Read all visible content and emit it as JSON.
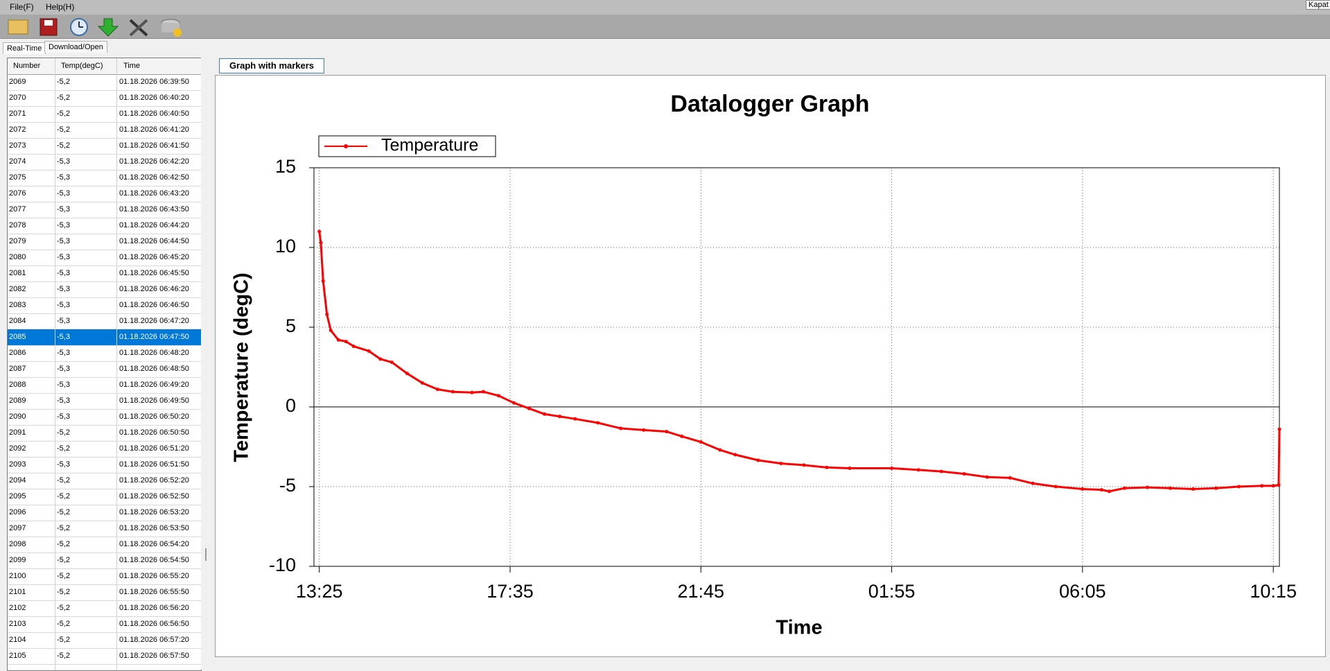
{
  "menu": [
    "File(F)",
    "Help(H)"
  ],
  "window_button": "Kapat",
  "tabs": [
    "Real-Time",
    "Download/Open"
  ],
  "table": {
    "columns": [
      "Number",
      "Temp(degC)",
      "Time"
    ],
    "selected_row": 16,
    "rows": [
      [
        "2069",
        "-5,2",
        "01.18.2026 06:39:50"
      ],
      [
        "2070",
        "-5,2",
        "01.18.2026 06:40:20"
      ],
      [
        "2071",
        "-5,2",
        "01.18.2026 06:40:50"
      ],
      [
        "2072",
        "-5,2",
        "01.18.2026 06:41:20"
      ],
      [
        "2073",
        "-5,2",
        "01.18.2026 06:41:50"
      ],
      [
        "2074",
        "-5,3",
        "01.18.2026 06:42:20"
      ],
      [
        "2075",
        "-5,3",
        "01.18.2026 06:42:50"
      ],
      [
        "2076",
        "-5,3",
        "01.18.2026 06:43:20"
      ],
      [
        "2077",
        "-5,3",
        "01.18.2026 06:43:50"
      ],
      [
        "2078",
        "-5,3",
        "01.18.2026 06:44:20"
      ],
      [
        "2079",
        "-5,3",
        "01.18.2026 06:44:50"
      ],
      [
        "2080",
        "-5,3",
        "01.18.2026 06:45:20"
      ],
      [
        "2081",
        "-5,3",
        "01.18.2026 06:45:50"
      ],
      [
        "2082",
        "-5,3",
        "01.18.2026 06:46:20"
      ],
      [
        "2083",
        "-5,3",
        "01.18.2026 06:46:50"
      ],
      [
        "2084",
        "-5,3",
        "01.18.2026 06:47:20"
      ],
      [
        "2085",
        "-5,3",
        "01.18.2026 06:47:50"
      ],
      [
        "2086",
        "-5,3",
        "01.18.2026 06:48:20"
      ],
      [
        "2087",
        "-5,3",
        "01.18.2026 06:48:50"
      ],
      [
        "2088",
        "-5,3",
        "01.18.2026 06:49:20"
      ],
      [
        "2089",
        "-5,3",
        "01.18.2026 06:49:50"
      ],
      [
        "2090",
        "-5,3",
        "01.18.2026 06:50:20"
      ],
      [
        "2091",
        "-5,2",
        "01.18.2026 06:50:50"
      ],
      [
        "2092",
        "-5,2",
        "01.18.2026 06:51:20"
      ],
      [
        "2093",
        "-5,3",
        "01.18.2026 06:51:50"
      ],
      [
        "2094",
        "-5,2",
        "01.18.2026 06:52:20"
      ],
      [
        "2095",
        "-5,2",
        "01.18.2026 06:52:50"
      ],
      [
        "2096",
        "-5,2",
        "01.18.2026 06:53:20"
      ],
      [
        "2097",
        "-5,2",
        "01.18.2026 06:53:50"
      ],
      [
        "2098",
        "-5,2",
        "01.18.2026 06:54:20"
      ],
      [
        "2099",
        "-5,2",
        "01.18.2026 06:54:50"
      ],
      [
        "2100",
        "-5,2",
        "01.18.2026 06:55:20"
      ],
      [
        "2101",
        "-5,2",
        "01.18.2026 06:55:50"
      ],
      [
        "2102",
        "-5,2",
        "01.18.2026 06:56:20"
      ],
      [
        "2103",
        "-5,2",
        "01.18.2026 06:56:50"
      ],
      [
        "2104",
        "-5,2",
        "01.18.2026 06:57:20"
      ],
      [
        "2105",
        "-5,2",
        "01.18.2026 06:57:50"
      ]
    ]
  },
  "graph_tab": "Graph with markers",
  "chart_data": {
    "type": "line",
    "title": "Datalogger Graph",
    "xlabel": "Time",
    "ylabel": "Temperature (degC)",
    "legend": "top-left",
    "grid": true,
    "x": [
      "13:25",
      "13:27",
      "13:30",
      "13:35",
      "13:40",
      "13:50",
      "14:00",
      "14:10",
      "14:30",
      "14:45",
      "15:00",
      "15:20",
      "15:40",
      "16:00",
      "16:20",
      "16:45",
      "17:00",
      "17:20",
      "17:40",
      "18:00",
      "18:20",
      "18:40",
      "19:00",
      "19:30",
      "20:00",
      "20:30",
      "21:00",
      "21:20",
      "21:45",
      "22:10",
      "22:30",
      "23:00",
      "23:30",
      "00:00",
      "00:30",
      "01:00",
      "01:55",
      "02:30",
      "03:00",
      "03:30",
      "04:00",
      "04:30",
      "05:00",
      "05:30",
      "06:05",
      "06:30",
      "06:40",
      "07:00",
      "07:30",
      "08:00",
      "08:30",
      "09:00",
      "09:30",
      "10:00",
      "10:15",
      "10:22",
      "10:23"
    ],
    "series": [
      {
        "name": "Temperature",
        "color": "#ff0000",
        "values": [
          11.0,
          10.3,
          7.9,
          5.8,
          4.8,
          4.2,
          4.1,
          3.8,
          3.5,
          3.0,
          2.8,
          2.1,
          1.5,
          1.1,
          0.95,
          0.9,
          0.95,
          0.7,
          0.25,
          -0.1,
          -0.45,
          -0.6,
          -0.75,
          -1.0,
          -1.35,
          -1.45,
          -1.55,
          -1.85,
          -2.2,
          -2.7,
          -3.0,
          -3.35,
          -3.55,
          -3.65,
          -3.8,
          -3.85,
          -3.85,
          -3.95,
          -4.05,
          -4.2,
          -4.4,
          -4.45,
          -4.8,
          -5.0,
          -5.15,
          -5.2,
          -5.3,
          -5.1,
          -5.05,
          -5.1,
          -5.15,
          -5.1,
          -5.0,
          -4.95,
          -4.95,
          -4.9,
          -1.4
        ]
      }
    ],
    "xlim": [
      "13:18",
      "10:23"
    ],
    "xticks": [
      "13:25",
      "17:35",
      "21:45",
      "01:55",
      "06:05",
      "10:15"
    ],
    "ylim": [
      -10,
      15
    ],
    "yticks": [
      -10,
      -5,
      0,
      5,
      10,
      15
    ]
  }
}
